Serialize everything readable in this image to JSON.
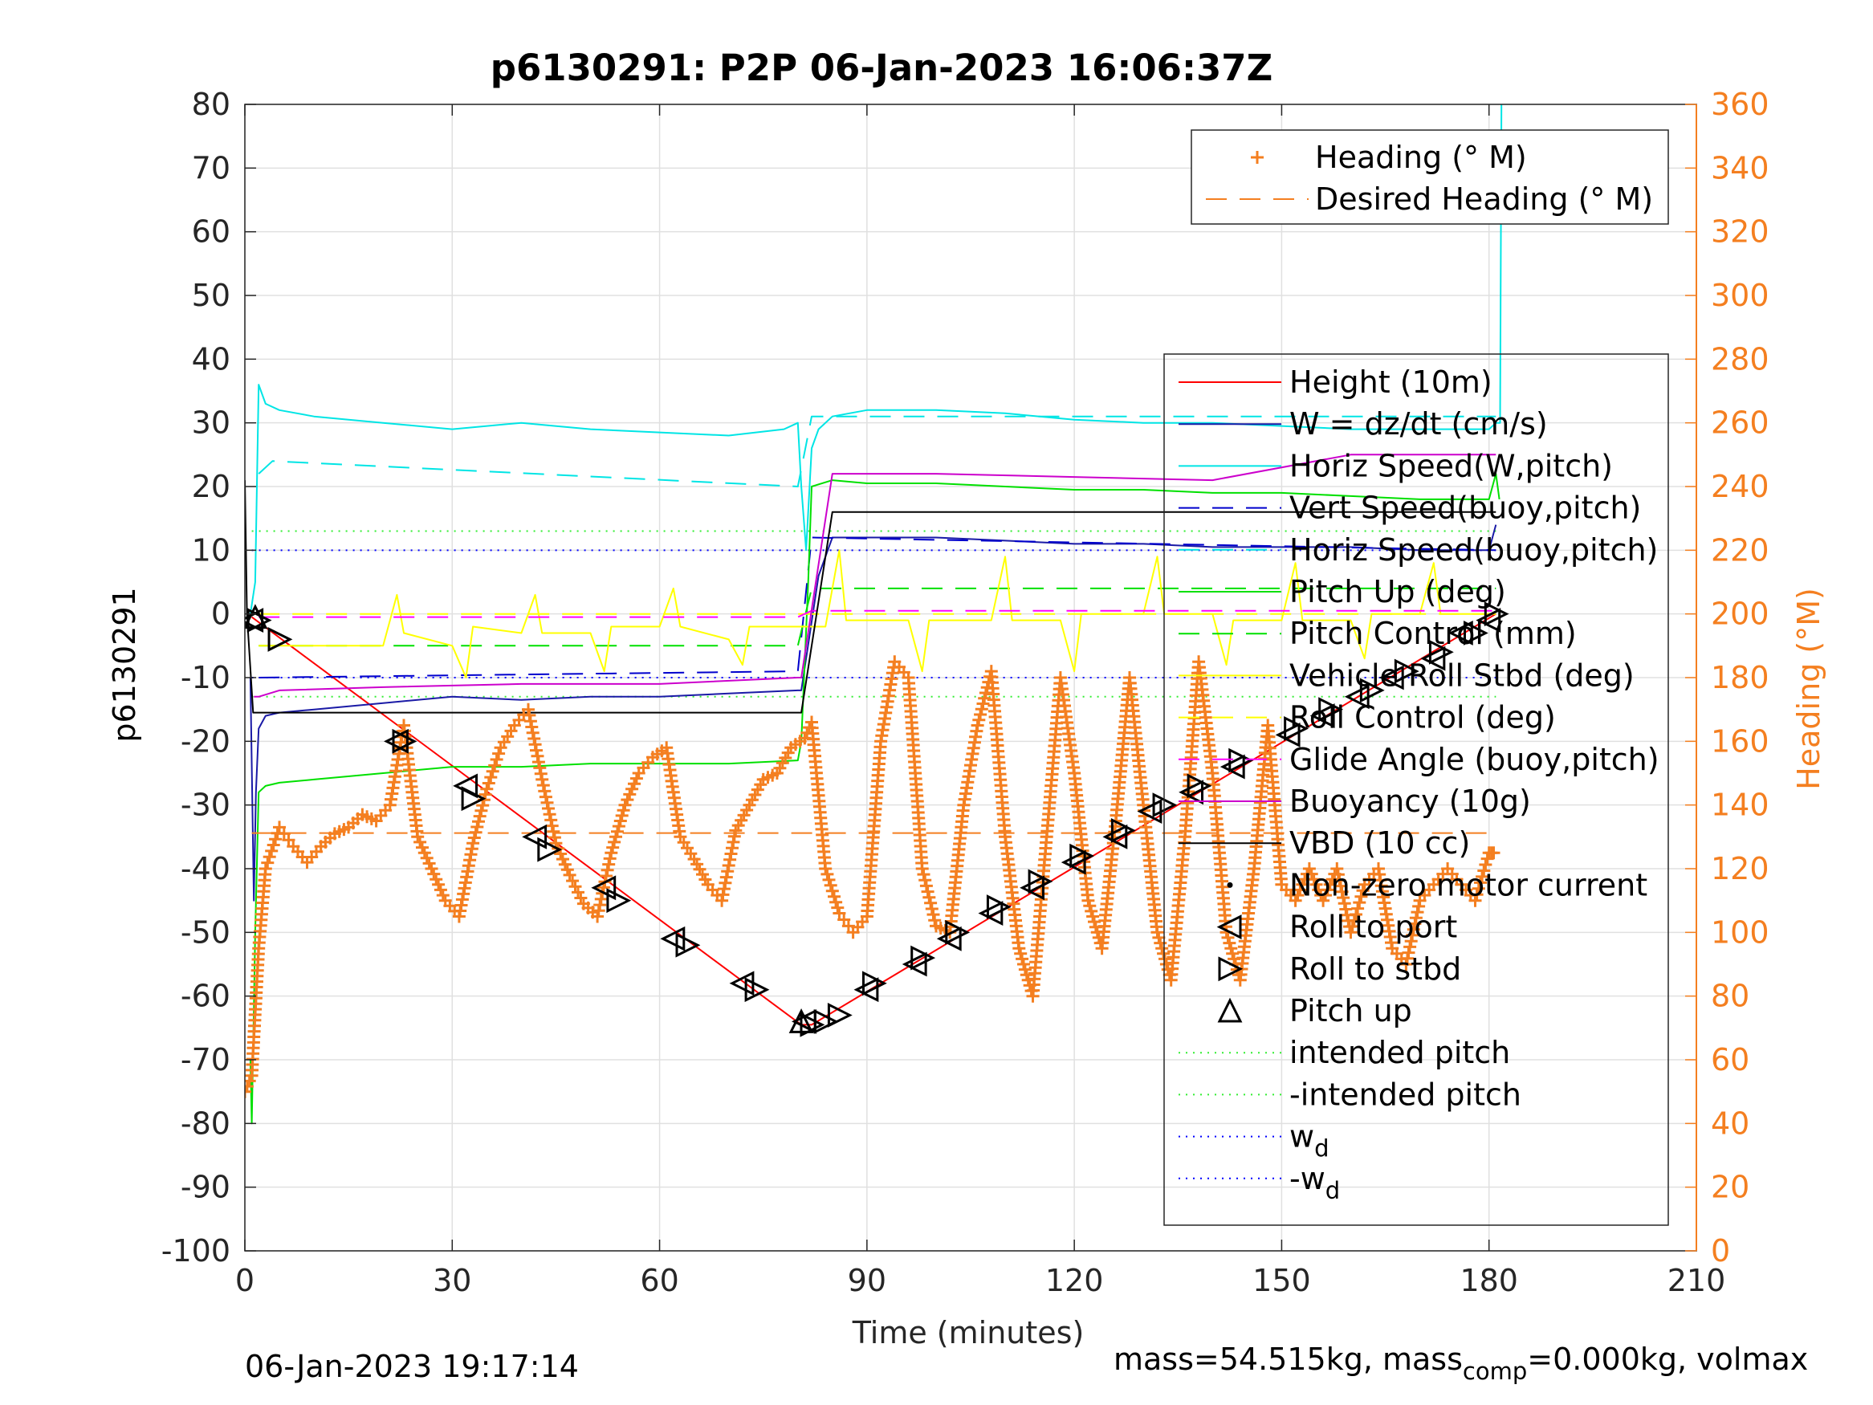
{
  "title": "p6130291: P2P 06-Jan-2023 16:06:37Z",
  "footer_left": "06-Jan-2023 19:17:14",
  "footer_right": {
    "prefix": "mass=54.515kg, mass",
    "sub": "comp",
    "suffix": "=0.000kg, volmax"
  },
  "colors": {
    "heading": "#f47f20",
    "height": "#ff0000",
    "w": "#1a1aa6",
    "horiz_speed": "#00e5e5",
    "vert_speed_buoy": "#0000cc",
    "pitch": "#00e000",
    "roll": "#ffff00",
    "glide_buoy": "#ff00ff",
    "buoyancy": "#cc00cc",
    "vbd": "#000000",
    "intended_pitch": "#33ee33",
    "wd": "#0000ff",
    "grid": "#e0e0e0"
  },
  "chart_data": {
    "type": "line",
    "title": "p6130291: P2P 06-Jan-2023 16:06:37Z",
    "xlabel": "Time (minutes)",
    "ylabel": "p6130291",
    "y2label": "Heading (°M)",
    "xlim": [
      0,
      210
    ],
    "ylim": [
      -100,
      80
    ],
    "y2lim": [
      0,
      360
    ],
    "xticks": [
      0,
      30,
      60,
      90,
      120,
      150,
      180,
      210
    ],
    "yticks": [
      -100,
      -90,
      -80,
      -70,
      -60,
      -50,
      -40,
      -30,
      -20,
      -10,
      0,
      10,
      20,
      30,
      40,
      50,
      60,
      70,
      80
    ],
    "y2ticks": [
      0,
      20,
      40,
      60,
      80,
      100,
      120,
      140,
      160,
      180,
      200,
      220,
      240,
      260,
      280,
      300,
      320,
      340,
      360
    ],
    "grid": true,
    "legend_heading": {
      "placement": "top-right",
      "entries": [
        "Heading (° M)",
        "Desired Heading (° M)"
      ]
    },
    "legend_main": {
      "placement": "right",
      "entries": [
        {
          "label": "Height (10m)",
          "style": "line",
          "color": "#ff0000"
        },
        {
          "label": "W = dz/dt (cm/s)",
          "style": "line",
          "color": "#1a1aa6"
        },
        {
          "label": "Horiz Speed(W,pitch)",
          "style": "line",
          "color": "#00e5e5"
        },
        {
          "label": "Vert Speed(buoy,pitch)",
          "style": "dash",
          "color": "#0000cc"
        },
        {
          "label": "Horiz Speed(buoy,pitch)",
          "style": "dash",
          "color": "#00e5e5"
        },
        {
          "label": "Pitch Up (deg)",
          "style": "line",
          "color": "#00e000"
        },
        {
          "label": "Pitch Control (mm)",
          "style": "dash",
          "color": "#00e000"
        },
        {
          "label": "Vehicle Roll Stbd (deg)",
          "style": "line",
          "color": "#ffff00"
        },
        {
          "label": "Roll Control (deg)",
          "style": "dash",
          "color": "#ffff00"
        },
        {
          "label": "Glide Angle (buoy,pitch)",
          "style": "dash",
          "color": "#ff00ff"
        },
        {
          "label": "Buoyancy (10g)",
          "style": "line",
          "color": "#cc00cc"
        },
        {
          "label": "VBD (10 cc)",
          "style": "line",
          "color": "#000000"
        },
        {
          "label": "Non-zero motor current",
          "style": "dot",
          "color": "#000000"
        },
        {
          "label": "Roll to port",
          "style": "tri-left",
          "color": "#000000"
        },
        {
          "label": "Roll to stbd",
          "style": "tri-right",
          "color": "#000000"
        },
        {
          "label": "Pitch up",
          "style": "tri-up",
          "color": "#000000"
        },
        {
          "label": "intended pitch",
          "style": "dotted",
          "color": "#33ee33"
        },
        {
          "label": "-intended pitch",
          "style": "dotted",
          "color": "#33ee33"
        },
        {
          "label": "w",
          "sub": "d",
          "style": "dotted",
          "color": "#0000ff"
        },
        {
          "label": "-w",
          "sub": "d",
          "style": "dotted",
          "color": "#0000ff"
        }
      ]
    },
    "series": [
      {
        "name": "Height (10m)",
        "axis": "left",
        "x": [
          1,
          80.5,
          82,
          181
        ],
        "y": [
          -0.5,
          -64.5,
          -64.5,
          0
        ]
      },
      {
        "name": "W = dz/dt (cm/s)",
        "axis": "left",
        "x": [
          0.8,
          1.3,
          1.6,
          2,
          3,
          5,
          10,
          20,
          30,
          40,
          50,
          60,
          70,
          80,
          80.5,
          83,
          85,
          90,
          100,
          110,
          120,
          130,
          140,
          150,
          160,
          170,
          180,
          181
        ],
        "y": [
          -10,
          -45,
          -28,
          -18,
          -16,
          -15.5,
          -15,
          -14,
          -13,
          -13.5,
          -13,
          -13,
          -12.5,
          -12,
          -12,
          6,
          12,
          12,
          12,
          11.5,
          11,
          11,
          10.5,
          10.5,
          10.5,
          10,
          10,
          14
        ]
      },
      {
        "name": "Horiz Speed(W,pitch)",
        "axis": "left",
        "x": [
          0.8,
          1.5,
          2,
          3,
          5,
          10,
          20,
          30,
          40,
          50,
          60,
          70,
          78,
          80,
          80.5,
          81.2,
          82,
          83,
          85,
          90,
          100,
          110,
          120,
          130,
          140,
          150,
          160,
          170,
          180,
          181,
          181.6,
          181.8
        ],
        "y": [
          0,
          5,
          36,
          33,
          32,
          31,
          30,
          29,
          30,
          29,
          28.5,
          28,
          29,
          30,
          20,
          10,
          26,
          29,
          31,
          32,
          32,
          31.5,
          30.5,
          30,
          30,
          29.5,
          29,
          29,
          29,
          30,
          30,
          80
        ]
      },
      {
        "name": "Vert Speed(buoy,pitch)",
        "axis": "left",
        "x": [
          2,
          80,
          82,
          181
        ],
        "y": [
          -10,
          -9,
          12,
          10
        ]
      },
      {
        "name": "Horiz Speed(buoy,pitch)",
        "axis": "left",
        "x": [
          2,
          4,
          80,
          82,
          181
        ],
        "y": [
          22,
          24,
          20,
          31,
          31
        ]
      },
      {
        "name": "Pitch Up (deg)",
        "axis": "left",
        "x": [
          0.8,
          1,
          1.5,
          2,
          3,
          5,
          10,
          20,
          30,
          40,
          50,
          60,
          70,
          80,
          80.5,
          81.5,
          82,
          85,
          90,
          100,
          110,
          120,
          130,
          140,
          150,
          160,
          170,
          180,
          181,
          181.5
        ],
        "y": [
          -70,
          -80,
          -50,
          -28,
          -27,
          -26.5,
          -26,
          -25,
          -24,
          -24,
          -23.5,
          -23.5,
          -23.5,
          -23,
          -20,
          5,
          20,
          21,
          20.5,
          20.5,
          20,
          19.5,
          19.5,
          19,
          19,
          18.5,
          18,
          18,
          22,
          18
        ]
      },
      {
        "name": "Pitch Control (mm)",
        "axis": "left",
        "x": [
          2,
          80,
          82,
          181
        ],
        "y": [
          -5,
          -5,
          4,
          4
        ]
      },
      {
        "name": "Vehicle Roll Stbd (deg)",
        "axis": "left",
        "x": [
          2,
          20,
          22,
          23,
          30,
          32,
          33,
          40,
          42,
          43,
          50,
          52,
          53,
          60,
          62,
          63,
          70,
          72,
          73,
          80,
          84,
          86,
          87,
          96,
          98,
          99,
          108,
          110,
          111,
          118,
          120,
          121,
          130,
          132,
          133,
          140,
          142,
          143,
          150,
          152,
          153,
          160,
          162,
          163,
          170,
          172,
          173,
          180,
          181
        ],
        "y": [
          -5,
          -5,
          3,
          -3,
          -5,
          -10,
          -2,
          -3,
          3,
          -3,
          -3,
          -9,
          -2,
          -2,
          4,
          -2,
          -4,
          -8,
          -2,
          -2,
          -2,
          10,
          -1,
          -1,
          -9,
          -1,
          -1,
          9,
          -1,
          -1,
          -9,
          0,
          0,
          9,
          0,
          0,
          -8,
          -1,
          -1,
          8,
          -1,
          -1,
          -7,
          0,
          0,
          8,
          0,
          0,
          0
        ]
      },
      {
        "name": "Roll Control (deg)",
        "axis": "left",
        "x": [
          2,
          181
        ],
        "y": [
          0,
          0
        ]
      },
      {
        "name": "Glide Angle (buoy,pitch)",
        "axis": "left",
        "x": [
          2,
          80,
          82,
          181
        ],
        "y": [
          -0.5,
          -0.5,
          0.5,
          0.5
        ]
      },
      {
        "name": "Buoyancy (10g)",
        "axis": "left",
        "x": [
          1.3,
          2,
          5,
          20,
          40,
          60,
          80,
          80.5,
          85,
          100,
          120,
          140,
          160,
          170,
          180,
          181
        ],
        "y": [
          -13,
          -13,
          -12,
          -11.5,
          -11,
          -11,
          -10,
          -10,
          22,
          22,
          21.5,
          21,
          25,
          25,
          25,
          25
        ]
      },
      {
        "name": "VBD (10 cc)",
        "axis": "left",
        "x": [
          0,
          0.3,
          1.2,
          1.3,
          80,
          80.5,
          85,
          165,
          181
        ],
        "y": [
          21,
          0,
          -15.5,
          -15.5,
          -15.5,
          -15.5,
          16,
          16,
          16
        ]
      },
      {
        "name": "Heading (° M)",
        "axis": "right",
        "x": [
          0,
          1,
          2,
          3,
          5,
          7,
          9,
          11,
          13,
          15,
          17,
          19,
          21,
          23,
          25,
          27,
          29,
          31,
          33,
          35,
          37,
          39,
          41,
          43,
          45,
          47,
          49,
          51,
          53,
          55,
          57,
          59,
          61,
          63,
          65,
          67,
          69,
          71,
          73,
          75,
          77,
          79,
          81,
          82,
          84,
          86,
          88,
          90,
          92,
          94,
          96,
          98,
          100,
          102,
          104,
          106,
          108,
          110,
          112,
          114,
          116,
          118,
          120,
          122,
          124,
          126,
          128,
          130,
          132,
          134,
          136,
          138,
          140,
          142,
          144,
          146,
          148,
          150,
          152,
          154,
          156,
          158,
          160,
          162,
          164,
          166,
          168,
          170,
          172,
          174,
          176,
          178,
          180,
          181
        ],
        "y": [
          50,
          55,
          95,
          120,
          133,
          127,
          122,
          127,
          131,
          133,
          137,
          135,
          140,
          165,
          130,
          120,
          110,
          105,
          128,
          145,
          158,
          165,
          170,
          148,
          128,
          118,
          109,
          105,
          125,
          140,
          150,
          155,
          158,
          130,
          123,
          115,
          110,
          132,
          140,
          148,
          150,
          158,
          161,
          166,
          120,
          106,
          100,
          105,
          160,
          185,
          180,
          120,
          102,
          100,
          140,
          165,
          182,
          130,
          95,
          80,
          130,
          180,
          150,
          110,
          95,
          135,
          180,
          140,
          100,
          85,
          130,
          185,
          150,
          100,
          85,
          120,
          165,
          115,
          110,
          120,
          110,
          120,
          100,
          115,
          120,
          95,
          90,
          110,
          115,
          120,
          115,
          110,
          125,
          125
        ]
      },
      {
        "name": "Desired Heading (° M)",
        "axis": "right",
        "x": [
          1,
          181
        ],
        "y": [
          131.2,
          131.2
        ]
      }
    ],
    "reference_lines": [
      {
        "name": "intended pitch",
        "axis": "left",
        "y": 13,
        "x": [
          1,
          181
        ]
      },
      {
        "name": "-intended pitch",
        "axis": "left",
        "y": -13,
        "x": [
          1,
          181
        ]
      },
      {
        "name": "w_d",
        "axis": "left",
        "y": 10,
        "x": [
          1,
          181
        ]
      },
      {
        "name": "-w_d",
        "axis": "left",
        "y": -10,
        "x": [
          1,
          181
        ]
      }
    ],
    "markers": {
      "roll_to_port": {
        "x": [
          1,
          22,
          32,
          42,
          52,
          62,
          72,
          81,
          90,
          97,
          102,
          108,
          114,
          120,
          126,
          131,
          137,
          143,
          151,
          156,
          161,
          166,
          172,
          176,
          180
        ],
        "y": [
          -1,
          -20,
          -27,
          -35,
          -43,
          -51,
          -58,
          -64,
          -59,
          -55,
          -51,
          -47,
          -43,
          -39,
          -35,
          -31,
          -28,
          -24,
          -19,
          -16,
          -13,
          -10,
          -7,
          -3,
          -1
        ]
      },
      "roll_to_stbd": {
        "x": [
          2,
          5,
          23,
          33,
          44,
          54,
          64,
          74,
          82,
          84,
          86,
          91,
          98,
          103,
          109,
          115,
          121,
          127,
          133,
          138,
          144,
          152,
          157,
          163,
          168,
          173,
          178,
          181
        ],
        "y": [
          -1,
          -4,
          -20,
          -29,
          -37,
          -45,
          -52,
          -59,
          -64.5,
          -64,
          -63,
          -58,
          -54,
          -50,
          -46,
          -42,
          -38,
          -34,
          -30,
          -27,
          -23,
          -18,
          -15,
          -12,
          -9,
          -6,
          -3,
          0
        ]
      },
      "pitch_up": {
        "x": [
          1.5,
          80.5
        ],
        "y": [
          -0.5,
          -64
        ]
      }
    }
  }
}
